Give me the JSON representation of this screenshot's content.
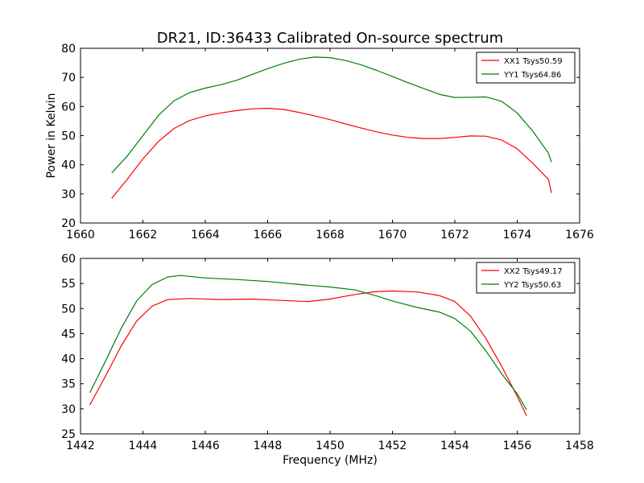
{
  "title": "DR21, ID:36433 Calibrated On-source spectrum",
  "chart_data": [
    {
      "type": "line",
      "xlabel": "",
      "ylabel": "Power in Kelvin",
      "xlim": [
        1660,
        1676
      ],
      "ylim": [
        20,
        80
      ],
      "xticks": [
        1660,
        1662,
        1664,
        1666,
        1668,
        1670,
        1672,
        1674,
        1676
      ],
      "yticks": [
        20,
        30,
        40,
        50,
        60,
        70,
        80
      ],
      "legend_position": "top-right",
      "series": [
        {
          "name": "XX1 Tsys50.59",
          "color": "#ff0000",
          "points": [
            [
              1661.0,
              28.5
            ],
            [
              1661.5,
              35
            ],
            [
              1662.0,
              42
            ],
            [
              1662.5,
              48
            ],
            [
              1663.0,
              52.5
            ],
            [
              1663.5,
              55.2
            ],
            [
              1664.0,
              56.8
            ],
            [
              1664.5,
              57.8
            ],
            [
              1665.0,
              58.6
            ],
            [
              1665.5,
              59.2
            ],
            [
              1666.0,
              59.4
            ],
            [
              1666.5,
              59.0
            ],
            [
              1667.0,
              58.0
            ],
            [
              1667.5,
              56.8
            ],
            [
              1668.0,
              55.5
            ],
            [
              1668.5,
              54.0
            ],
            [
              1669.0,
              52.6
            ],
            [
              1669.5,
              51.3
            ],
            [
              1670.0,
              50.2
            ],
            [
              1670.5,
              49.4
            ],
            [
              1671.0,
              49.0
            ],
            [
              1671.5,
              49.0
            ],
            [
              1672.0,
              49.4
            ],
            [
              1672.5,
              49.9
            ],
            [
              1673.0,
              49.8
            ],
            [
              1673.5,
              48.5
            ],
            [
              1674.0,
              45.5
            ],
            [
              1674.5,
              40.5
            ],
            [
              1675.0,
              35.0
            ],
            [
              1675.1,
              30.3
            ]
          ]
        },
        {
          "name": "YY1 Tsys64.86",
          "color": "#008000",
          "points": [
            [
              1661.0,
              37.2
            ],
            [
              1661.5,
              43
            ],
            [
              1662.0,
              50
            ],
            [
              1662.5,
              57
            ],
            [
              1663.0,
              62
            ],
            [
              1663.5,
              64.8
            ],
            [
              1664.0,
              66.3
            ],
            [
              1664.5,
              67.5
            ],
            [
              1665.0,
              69.0
            ],
            [
              1665.5,
              71.0
            ],
            [
              1666.0,
              73.0
            ],
            [
              1666.5,
              74.8
            ],
            [
              1667.0,
              76.2
            ],
            [
              1667.5,
              77.0
            ],
            [
              1668.0,
              76.8
            ],
            [
              1668.5,
              75.8
            ],
            [
              1669.0,
              74.3
            ],
            [
              1669.5,
              72.4
            ],
            [
              1670.0,
              70.3
            ],
            [
              1670.5,
              68.2
            ],
            [
              1671.0,
              66.2
            ],
            [
              1671.5,
              64.2
            ],
            [
              1672.0,
              63.1
            ],
            [
              1672.5,
              63.2
            ],
            [
              1673.0,
              63.3
            ],
            [
              1673.5,
              61.8
            ],
            [
              1674.0,
              57.8
            ],
            [
              1674.5,
              51.5
            ],
            [
              1675.0,
              44.0
            ],
            [
              1675.1,
              40.9
            ]
          ]
        }
      ]
    },
    {
      "type": "line",
      "xlabel": "Frequency (MHz)",
      "ylabel": "",
      "xlim": [
        1442,
        1458
      ],
      "ylim": [
        25,
        60
      ],
      "xticks": [
        1442,
        1444,
        1446,
        1448,
        1450,
        1452,
        1454,
        1456,
        1458
      ],
      "yticks": [
        25,
        30,
        35,
        40,
        45,
        50,
        55,
        60
      ],
      "legend_position": "top-right",
      "series": [
        {
          "name": "XX2 Tsys49.17",
          "color": "#ff0000",
          "points": [
            [
              1442.3,
              30.8
            ],
            [
              1442.8,
              36.5
            ],
            [
              1443.3,
              42.5
            ],
            [
              1443.8,
              47.5
            ],
            [
              1444.3,
              50.5
            ],
            [
              1444.8,
              51.8
            ],
            [
              1445.5,
              52.0
            ],
            [
              1446.5,
              51.8
            ],
            [
              1447.5,
              51.9
            ],
            [
              1448.5,
              51.6
            ],
            [
              1449.3,
              51.4
            ],
            [
              1450.0,
              51.9
            ],
            [
              1450.8,
              52.8
            ],
            [
              1451.5,
              53.4
            ],
            [
              1452.0,
              53.5
            ],
            [
              1452.8,
              53.3
            ],
            [
              1453.5,
              52.6
            ],
            [
              1454.0,
              51.4
            ],
            [
              1454.5,
              48.5
            ],
            [
              1455.0,
              44.0
            ],
            [
              1455.5,
              38.5
            ],
            [
              1456.0,
              32.5
            ],
            [
              1456.3,
              28.6
            ]
          ]
        },
        {
          "name": "YY2 Tsys50.63",
          "color": "#008000",
          "points": [
            [
              1442.3,
              33.2
            ],
            [
              1442.8,
              39.5
            ],
            [
              1443.3,
              46
            ],
            [
              1443.8,
              51.5
            ],
            [
              1444.3,
              54.8
            ],
            [
              1444.8,
              56.3
            ],
            [
              1445.2,
              56.6
            ],
            [
              1446.0,
              56.1
            ],
            [
              1447.0,
              55.8
            ],
            [
              1448.0,
              55.4
            ],
            [
              1449.0,
              54.8
            ],
            [
              1450.0,
              54.3
            ],
            [
              1450.8,
              53.7
            ],
            [
              1451.5,
              52.5
            ],
            [
              1452.0,
              51.5
            ],
            [
              1452.8,
              50.2
            ],
            [
              1453.5,
              49.3
            ],
            [
              1454.0,
              48.0
            ],
            [
              1454.5,
              45.5
            ],
            [
              1455.0,
              41.5
            ],
            [
              1455.5,
              37.0
            ],
            [
              1456.0,
              33.0
            ],
            [
              1456.3,
              29.8
            ]
          ]
        }
      ]
    }
  ]
}
